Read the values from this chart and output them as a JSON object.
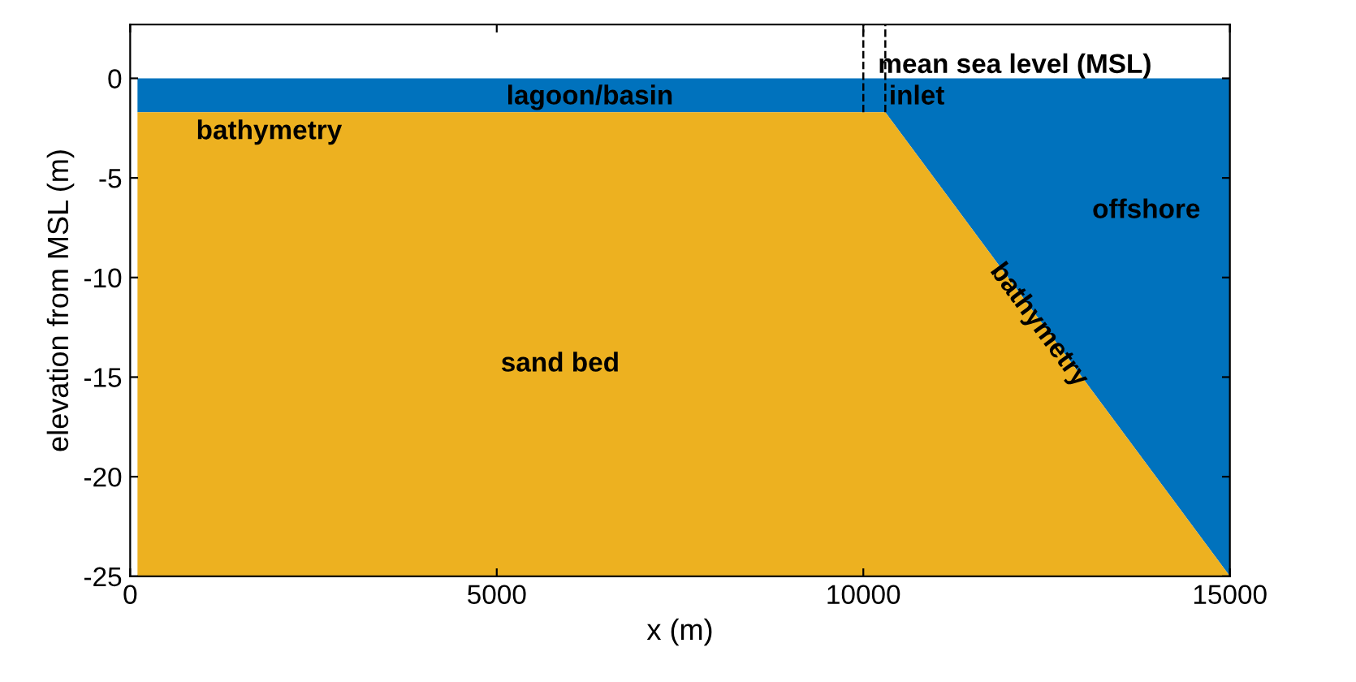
{
  "chart_data": {
    "type": "area",
    "xlabel": "x (m)",
    "ylabel": "elevation from MSL (m)",
    "xlim": [
      0,
      15000
    ],
    "xticks": [
      0,
      5000,
      10000,
      15000
    ],
    "ylim": [
      -25,
      2.7
    ],
    "yticks": [
      -25,
      -20,
      -15,
      -10,
      -5,
      0
    ],
    "grid": false,
    "legend": false,
    "series": [
      {
        "color": "#0072bd",
        "x": [
          100,
          10300,
          15000
        ],
        "values": [
          -1.7,
          -1.7,
          -25
        ]
      },
      {
        "color": "#edb120",
        "x": [
          100,
          100,
          10300,
          15000
        ],
        "values": [
          -25,
          -1.7,
          -1.7,
          -25
        ]
      }
    ],
    "ref_lines": [
      {
        "axis": "x",
        "value": 10000,
        "color": "#000000",
        "line_style": "dashed"
      },
      {
        "axis": "x",
        "value": 10300,
        "color": "#000000",
        "line_style": "dashed"
      }
    ],
    "annotations": [
      "lagoon/basin",
      "inlet",
      "mean sea level (MSL)",
      "bathymetry",
      "offshore",
      "sand bed",
      "bathymetry"
    ]
  }
}
